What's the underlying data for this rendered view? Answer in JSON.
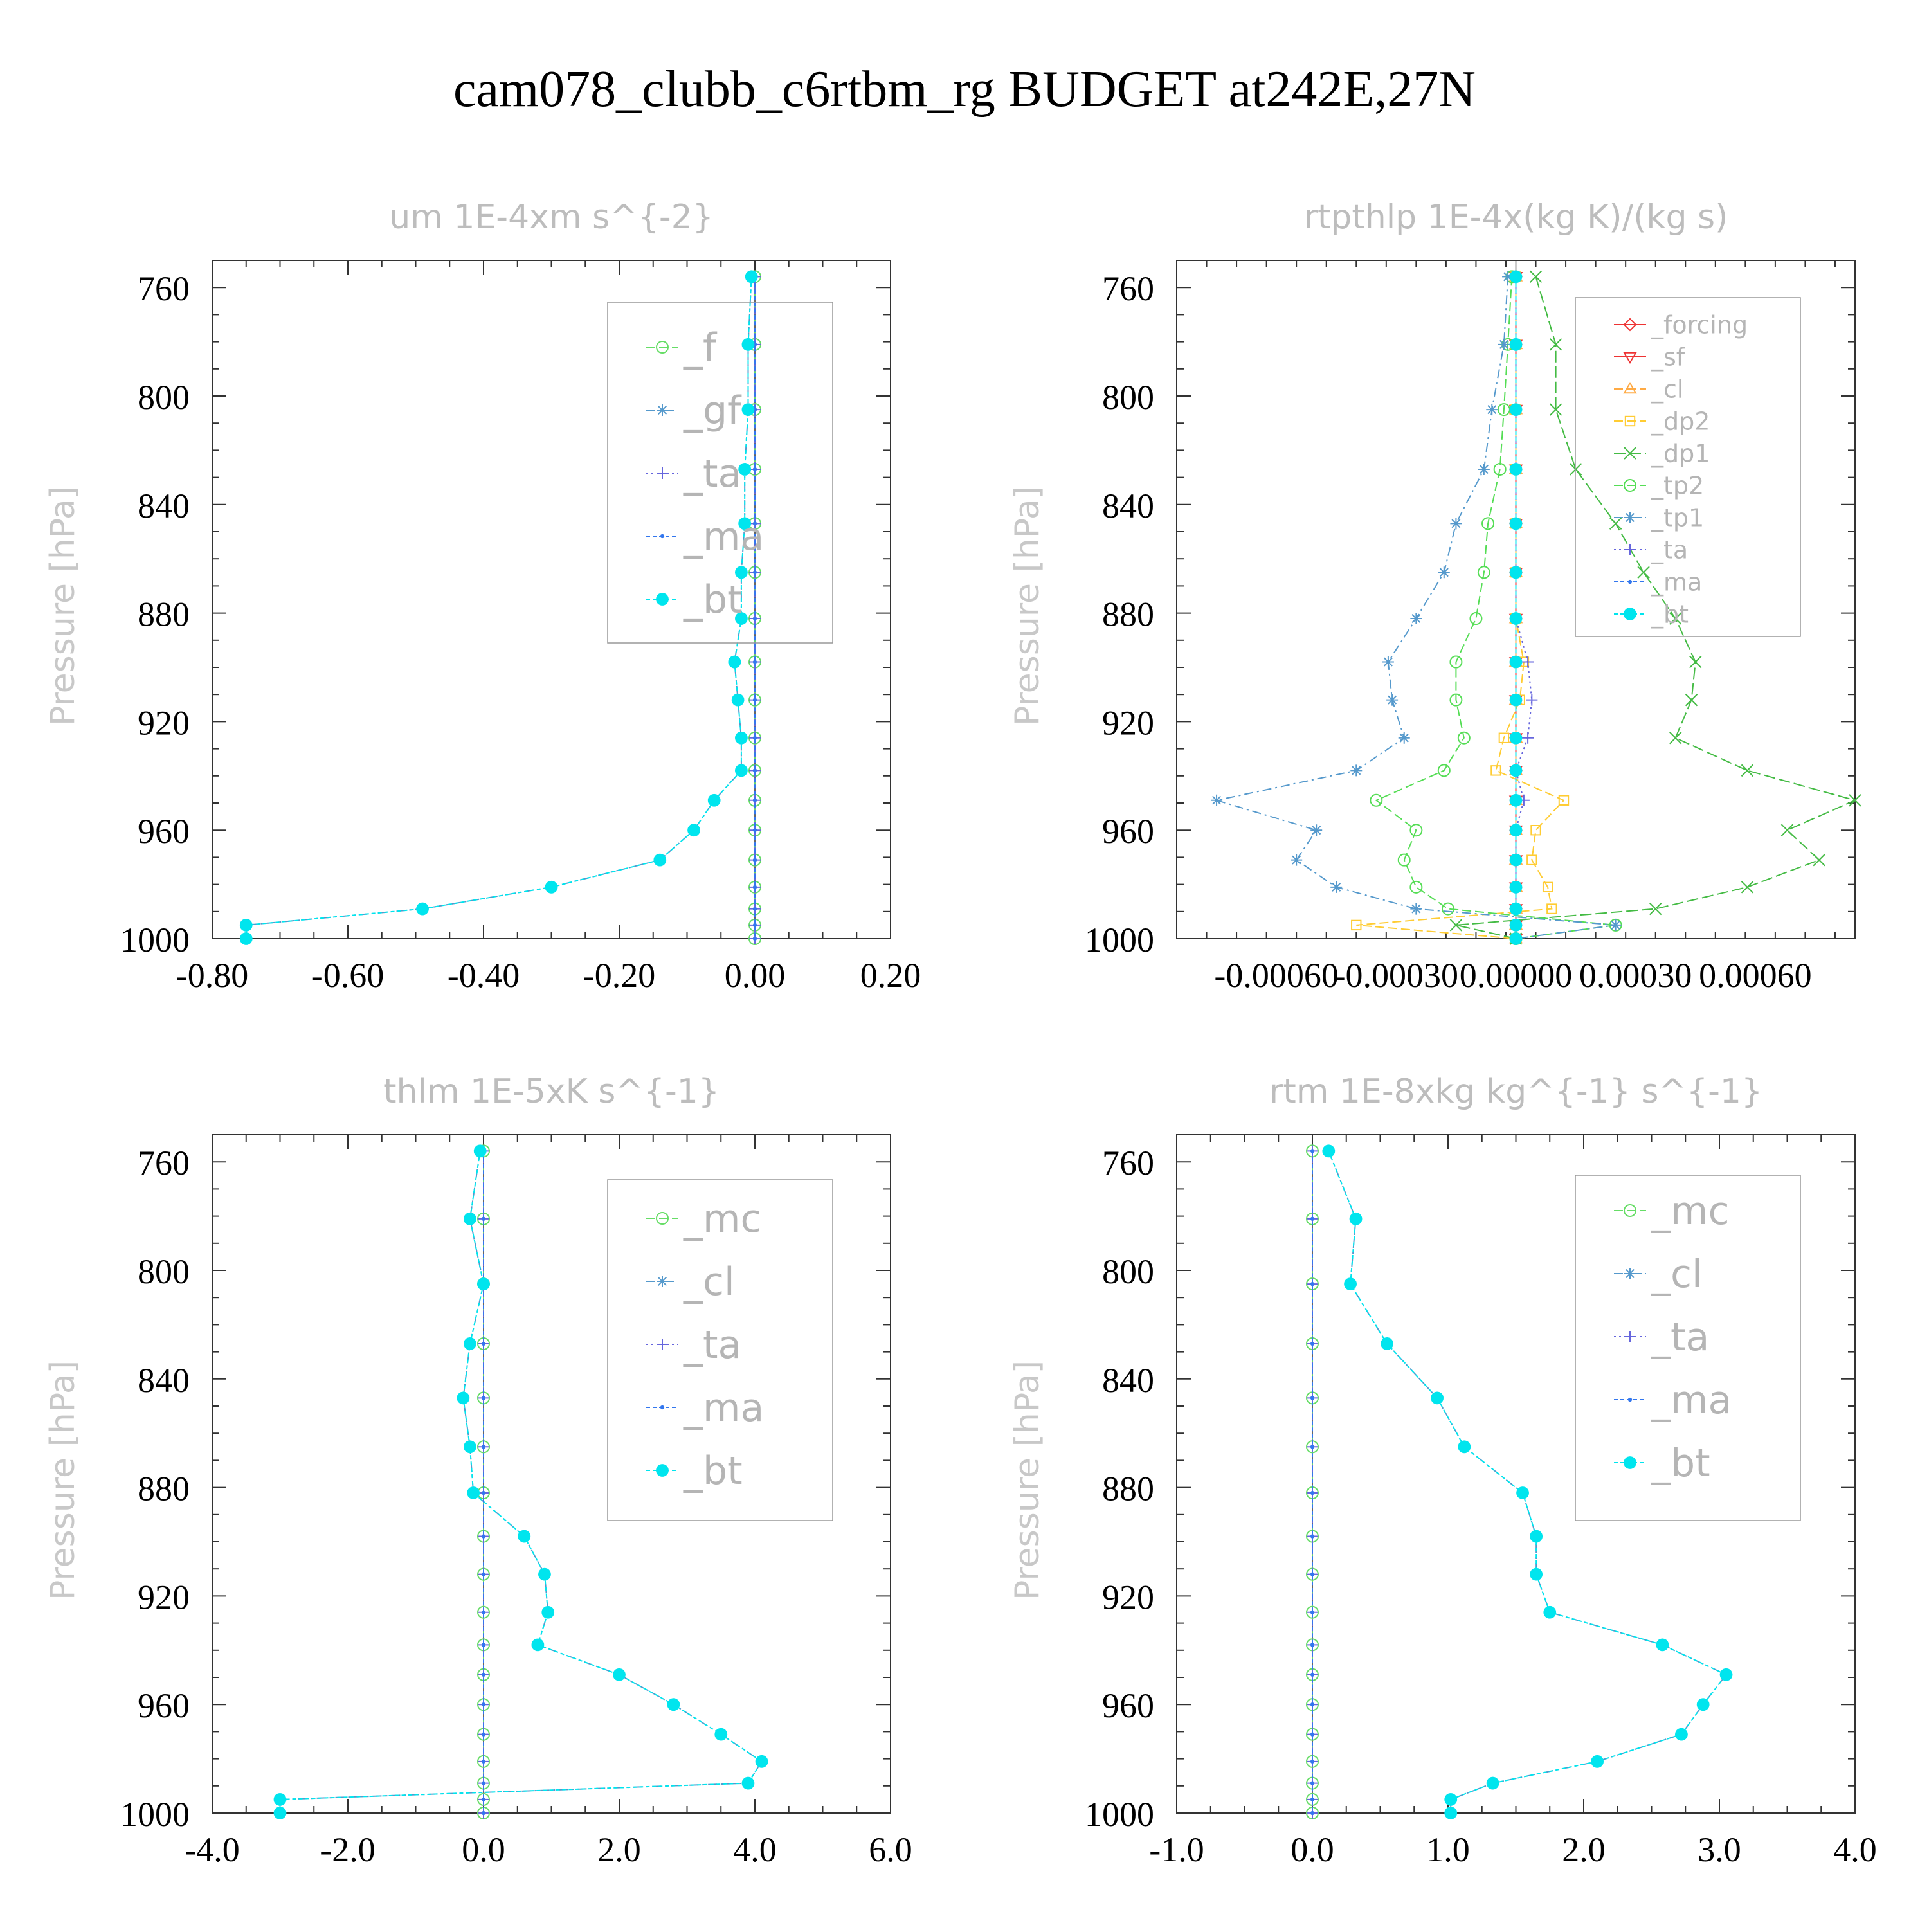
{
  "title": "cam078_clubb_c6rtbm_rg  BUDGET at242E,27N",
  "chart_data": [
    {
      "type": "line",
      "title": "um  1E-4xm s^{-2}",
      "ylabel": "Pressure [hPa]",
      "xlabel": "",
      "xlim": [
        -0.8,
        0.2
      ],
      "ylim": [
        1000,
        750
      ],
      "grid": false,
      "legend_position": "top-right",
      "xtick_labels": [
        "-0.80",
        "-0.60",
        "-0.40",
        "-0.20",
        "0.00",
        "0.20"
      ],
      "ytick_labels": [
        "760",
        "800",
        "840",
        "880",
        "920",
        "960",
        "1000"
      ],
      "y": [
        756,
        781,
        805,
        827,
        847,
        865,
        882,
        898,
        912,
        926,
        938,
        949,
        960,
        971,
        981,
        989,
        995,
        1000
      ],
      "series": [
        {
          "name": "_f",
          "color": "#66dd66",
          "marker": "circle",
          "x": [
            0.0,
            0.0,
            0.0,
            0.0,
            0.0,
            0.0,
            0.0,
            0.0,
            0.0,
            0.0,
            0.0,
            0.0,
            0.0,
            0.0,
            0.0,
            0.0,
            0.0,
            0.0
          ]
        },
        {
          "name": "_gf",
          "color": "#5599cc",
          "marker": "asterisk",
          "x": [
            -0.005,
            -0.01,
            -0.01,
            -0.015,
            -0.015,
            -0.02,
            -0.02,
            -0.03,
            -0.025,
            -0.02,
            -0.02,
            -0.06,
            -0.09,
            -0.14,
            -0.3,
            -0.49,
            -0.75,
            -0.75
          ]
        },
        {
          "name": "_ta",
          "color": "#6666dd",
          "marker": "plus",
          "x": [
            0.0,
            0.0,
            0.0,
            0.0,
            0.0,
            0.0,
            0.0,
            0.0,
            0.0,
            0.0,
            0.0,
            0.0,
            0.0,
            0.0,
            0.0,
            0.0,
            0.0,
            0.0
          ]
        },
        {
          "name": "_ma",
          "color": "#3377ee",
          "marker": "dot",
          "x": [
            0.0,
            0.0,
            0.0,
            0.0,
            0.0,
            0.0,
            0.0,
            0.0,
            0.0,
            0.0,
            0.0,
            0.0,
            0.0,
            0.0,
            0.0,
            0.0,
            0.0,
            0.0
          ]
        },
        {
          "name": "_bt",
          "color": "#00e5ee",
          "marker": "filled",
          "x": [
            -0.005,
            -0.01,
            -0.01,
            -0.015,
            -0.015,
            -0.02,
            -0.02,
            -0.03,
            -0.025,
            -0.02,
            -0.02,
            -0.06,
            -0.09,
            -0.14,
            -0.3,
            -0.49,
            -0.75,
            -0.75
          ]
        }
      ]
    },
    {
      "type": "line",
      "title": "rtpthlp  1E-4x(kg K)/(kg s)",
      "ylabel": "Pressure [hPa]",
      "xlabel": "",
      "xlim": [
        -0.00085,
        0.00085
      ],
      "ylim": [
        1000,
        750
      ],
      "grid": false,
      "legend_position": "top-right",
      "xtick_labels": [
        "-0.00060",
        "-0.00030",
        "0.00000",
        "0.00030",
        "0.00060"
      ],
      "ytick_labels": [
        "760",
        "800",
        "840",
        "880",
        "920",
        "960",
        "1000"
      ],
      "y": [
        756,
        781,
        805,
        827,
        847,
        865,
        882,
        898,
        912,
        926,
        938,
        949,
        960,
        971,
        981,
        989,
        995,
        1000
      ],
      "series": [
        {
          "name": "_forcing",
          "color": "#ee3333",
          "marker": "diamond",
          "x": [
            0,
            0,
            0,
            0,
            0,
            0,
            0,
            0,
            0,
            0,
            0,
            0,
            0,
            0,
            0,
            0,
            0,
            0
          ]
        },
        {
          "name": "_sf",
          "color": "#ee3333",
          "marker": "triangle-down",
          "x": [
            0,
            0,
            0,
            0,
            0,
            0,
            0,
            0,
            0,
            0,
            0,
            0,
            0,
            0,
            0,
            0,
            0,
            0
          ]
        },
        {
          "name": "_cl",
          "color": "#ffaa44",
          "marker": "triangle-up",
          "x": [
            0,
            0,
            0,
            0,
            0,
            0,
            0,
            0,
            0,
            0,
            0,
            0,
            0,
            0,
            0,
            0,
            0,
            0
          ]
        },
        {
          "name": "_dp2",
          "color": "#ffcc33",
          "marker": "square",
          "x": [
            0,
            0,
            0,
            0,
            0,
            0,
            0,
            2e-05,
            1e-05,
            -3e-05,
            -5e-05,
            0.00012,
            5e-05,
            4e-05,
            8e-05,
            9e-05,
            -0.0004,
            0
          ]
        },
        {
          "name": "_dp1",
          "color": "#44bb44",
          "marker": "cross",
          "x": [
            5e-05,
            0.0001,
            0.0001,
            0.00015,
            0.00025,
            0.00032,
            0.0004,
            0.00045,
            0.00044,
            0.0004,
            0.00058,
            0.00085,
            0.00068,
            0.00076,
            0.00058,
            0.00035,
            -0.00015,
            0
          ]
        },
        {
          "name": "_tp2",
          "color": "#55dd55",
          "marker": "circle",
          "x": [
            -1e-05,
            -2e-05,
            -3e-05,
            -4e-05,
            -7e-05,
            -8e-05,
            -0.0001,
            -0.00015,
            -0.00015,
            -0.00013,
            -0.00018,
            -0.00035,
            -0.00025,
            -0.00028,
            -0.00025,
            -0.00017,
            0.00025,
            0
          ]
        },
        {
          "name": "_tp1",
          "color": "#5599cc",
          "marker": "asterisk",
          "x": [
            -2e-05,
            -3e-05,
            -6e-05,
            -8e-05,
            -0.00015,
            -0.00018,
            -0.00025,
            -0.00032,
            -0.00031,
            -0.00028,
            -0.0004,
            -0.00075,
            -0.0005,
            -0.00055,
            -0.00045,
            -0.00025,
            0.00025,
            0
          ]
        },
        {
          "name": "_ta",
          "color": "#6666dd",
          "marker": "plus",
          "x": [
            0,
            0,
            0,
            0,
            0,
            0,
            0,
            3e-05,
            4e-05,
            3e-05,
            0,
            2e-05,
            0,
            0,
            0,
            0,
            0,
            0
          ]
        },
        {
          "name": "_ma",
          "color": "#3377ee",
          "marker": "dot",
          "x": [
            0,
            0,
            0,
            0,
            0,
            0,
            0,
            0,
            0,
            0,
            0,
            0,
            0,
            0,
            0,
            0,
            0,
            0
          ]
        },
        {
          "name": "_bt",
          "color": "#00e5ee",
          "marker": "filled",
          "x": [
            0,
            0,
            0,
            0,
            0,
            0,
            0,
            0,
            0,
            0,
            0,
            0,
            0,
            0,
            0,
            0,
            0,
            0
          ]
        }
      ]
    },
    {
      "type": "line",
      "title": "thlm  1E-5xK s^{-1}",
      "ylabel": "Pressure [hPa]",
      "xlabel": "",
      "xlim": [
        -4.0,
        6.0
      ],
      "ylim": [
        1000,
        750
      ],
      "grid": false,
      "legend_position": "top-right",
      "xtick_labels": [
        "-4.0",
        "-2.0",
        "0.0",
        "2.0",
        "4.0",
        "6.0"
      ],
      "ytick_labels": [
        "760",
        "800",
        "840",
        "880",
        "920",
        "960",
        "1000"
      ],
      "y": [
        756,
        781,
        805,
        827,
        847,
        865,
        882,
        898,
        912,
        926,
        938,
        949,
        960,
        971,
        981,
        989,
        995,
        1000
      ],
      "series": [
        {
          "name": "_mc",
          "color": "#66dd66",
          "marker": "circle",
          "x": [
            0,
            0,
            0,
            0,
            0,
            0,
            0,
            0,
            0,
            0,
            0,
            0,
            0,
            0,
            0,
            0,
            0,
            0
          ]
        },
        {
          "name": "_cl",
          "color": "#5599cc",
          "marker": "asterisk",
          "x": [
            -0.05,
            -0.2,
            0.0,
            -0.2,
            -0.3,
            -0.2,
            -0.15,
            0.6,
            0.9,
            0.95,
            0.8,
            2.0,
            2.8,
            3.5,
            4.1,
            3.9,
            -3.0,
            -3.0
          ]
        },
        {
          "name": "_ta",
          "color": "#6666dd",
          "marker": "plus",
          "x": [
            0,
            0,
            0,
            0,
            0,
            0,
            0,
            0,
            0,
            0,
            0,
            0,
            0,
            0,
            0,
            0,
            0,
            0
          ]
        },
        {
          "name": "_ma",
          "color": "#3377ee",
          "marker": "dot",
          "x": [
            0,
            0,
            0,
            0,
            0,
            0,
            0,
            0,
            0,
            0,
            0,
            0,
            0,
            0,
            0,
            0,
            0,
            0
          ]
        },
        {
          "name": "_bt",
          "color": "#00e5ee",
          "marker": "filled",
          "x": [
            -0.05,
            -0.2,
            0.0,
            -0.2,
            -0.3,
            -0.2,
            -0.15,
            0.6,
            0.9,
            0.95,
            0.8,
            2.0,
            2.8,
            3.5,
            4.1,
            3.9,
            -3.0,
            -3.0
          ]
        }
      ]
    },
    {
      "type": "line",
      "title": "rtm  1E-8xkg kg^{-1} s^{-1}",
      "ylabel": "Pressure [hPa]",
      "xlabel": "",
      "xlim": [
        -1.0,
        4.0
      ],
      "ylim": [
        1000,
        750
      ],
      "grid": false,
      "legend_position": "top-right",
      "xtick_labels": [
        "-1.0",
        "0.0",
        "1.0",
        "2.0",
        "3.0",
        "4.0"
      ],
      "ytick_labels": [
        "760",
        "800",
        "840",
        "880",
        "920",
        "960",
        "1000"
      ],
      "y": [
        756,
        781,
        805,
        827,
        847,
        865,
        882,
        898,
        912,
        926,
        938,
        949,
        960,
        971,
        981,
        989,
        995,
        1000
      ],
      "series": [
        {
          "name": "_mc",
          "color": "#66dd66",
          "marker": "circle",
          "x": [
            0,
            0,
            0,
            0,
            0,
            0,
            0,
            0,
            0,
            0,
            0,
            0,
            0,
            0,
            0,
            0,
            0,
            0
          ]
        },
        {
          "name": "_cl",
          "color": "#5599cc",
          "marker": "asterisk",
          "x": [
            0.12,
            0.32,
            0.28,
            0.55,
            0.92,
            1.12,
            1.55,
            1.65,
            1.65,
            1.75,
            2.58,
            3.05,
            2.88,
            2.72,
            2.1,
            1.33,
            1.02,
            1.02
          ]
        },
        {
          "name": "_ta",
          "color": "#6666dd",
          "marker": "plus",
          "x": [
            0,
            0,
            0,
            0,
            0,
            0,
            0,
            0,
            0,
            0,
            0,
            0,
            0,
            0,
            0,
            0,
            0,
            0
          ]
        },
        {
          "name": "_ma",
          "color": "#3377ee",
          "marker": "dot",
          "x": [
            0,
            0,
            0,
            0,
            0,
            0,
            0,
            0,
            0,
            0,
            0,
            0,
            0,
            0,
            0,
            0,
            0,
            0
          ]
        },
        {
          "name": "_bt",
          "color": "#00e5ee",
          "marker": "filled",
          "x": [
            0.12,
            0.32,
            0.28,
            0.55,
            0.92,
            1.12,
            1.55,
            1.65,
            1.65,
            1.75,
            2.58,
            3.05,
            2.88,
            2.72,
            2.1,
            1.33,
            1.02,
            1.02
          ]
        }
      ]
    }
  ]
}
